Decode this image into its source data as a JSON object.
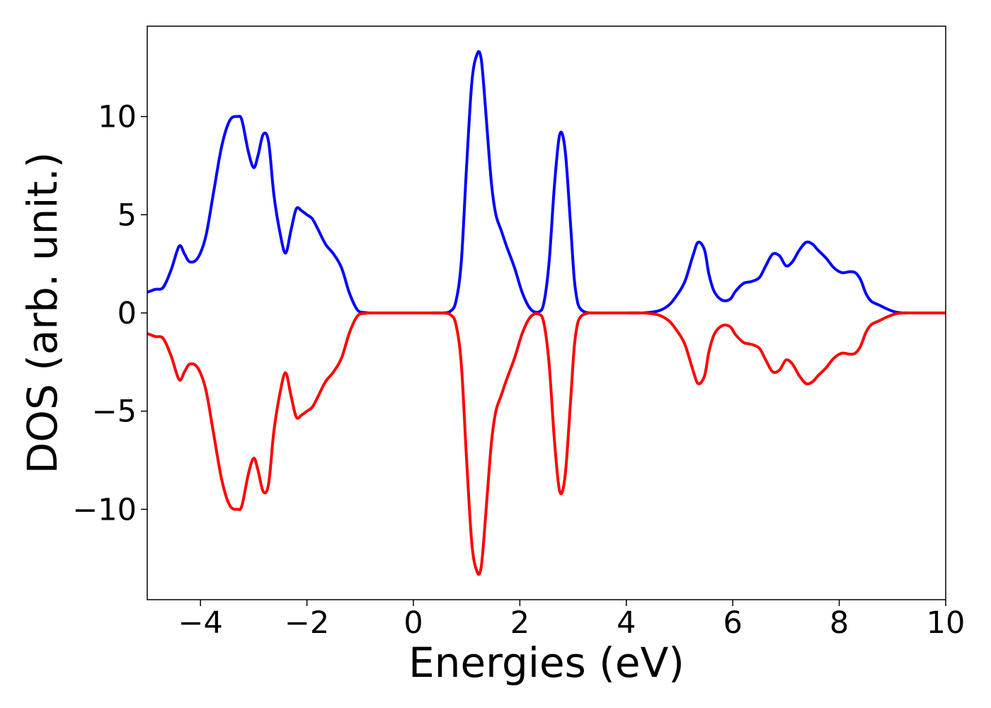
{
  "chart_data": {
    "type": "line",
    "title": "",
    "xlabel": "Energies (eV)",
    "ylabel": "DOS (arb. unit.)",
    "xlim": [
      -5,
      10
    ],
    "ylim": [
      -14.6,
      14.6
    ],
    "grid": false,
    "legend": "none",
    "xticks": [
      -4,
      -2,
      0,
      2,
      4,
      6,
      8,
      10
    ],
    "xtick_labels": [
      "−4",
      "−2",
      "0",
      "2",
      "4",
      "6",
      "8",
      "10"
    ],
    "yticks": [
      -10,
      -5,
      0,
      5,
      10
    ],
    "ytick_labels": [
      "−10",
      "−5",
      "0",
      "5",
      "10"
    ],
    "series": [
      {
        "color": "#0000ff",
        "x": [
          -5.0,
          -4.85,
          -4.7,
          -4.55,
          -4.4,
          -4.3,
          -4.2,
          -4.05,
          -3.9,
          -3.75,
          -3.6,
          -3.45,
          -3.3,
          -3.22,
          -3.1,
          -3.0,
          -2.92,
          -2.82,
          -2.72,
          -2.62,
          -2.5,
          -2.4,
          -2.3,
          -2.2,
          -2.1,
          -2.0,
          -1.9,
          -1.8,
          -1.65,
          -1.5,
          -1.35,
          -1.2,
          -1.05,
          -0.9,
          -0.75,
          -0.6,
          -0.45,
          -0.2,
          0.0,
          0.3,
          0.55,
          0.7,
          0.8,
          0.9,
          1.0,
          1.1,
          1.2,
          1.27,
          1.33,
          1.4,
          1.47,
          1.55,
          1.65,
          1.75,
          1.9,
          2.05,
          2.2,
          2.35,
          2.45,
          2.55,
          2.65,
          2.75,
          2.85,
          2.95,
          3.02,
          3.08,
          3.14,
          3.22,
          3.32,
          3.42,
          3.52,
          3.65,
          3.8,
          4.0,
          4.3,
          4.6,
          4.8,
          4.95,
          5.1,
          5.25,
          5.35,
          5.47,
          5.55,
          5.65,
          5.8,
          5.95,
          6.05,
          6.2,
          6.35,
          6.5,
          6.62,
          6.75,
          6.88,
          7.0,
          7.12,
          7.25,
          7.38,
          7.5,
          7.6,
          7.75,
          7.9,
          8.05,
          8.2,
          8.3,
          8.4,
          8.5,
          8.6,
          8.75,
          8.9,
          9.05,
          9.2,
          9.4,
          9.7,
          10.0
        ],
        "y": [
          1.05,
          1.2,
          1.3,
          2.2,
          3.4,
          3.0,
          2.6,
          2.8,
          3.9,
          6.2,
          8.5,
          9.8,
          10.0,
          9.8,
          8.2,
          7.4,
          8.0,
          9.1,
          8.7,
          6.0,
          4.0,
          3.05,
          4.2,
          5.3,
          5.2,
          5.0,
          4.8,
          4.3,
          3.5,
          3.0,
          2.3,
          1.0,
          0.15,
          0.02,
          0.0,
          0.0,
          0.0,
          0.0,
          0.0,
          0.0,
          0.0,
          0.1,
          0.6,
          2.6,
          7.5,
          11.8,
          13.2,
          13.0,
          11.3,
          8.8,
          6.5,
          5.0,
          4.2,
          3.4,
          2.3,
          1.0,
          0.2,
          0.05,
          0.5,
          2.6,
          6.5,
          9.1,
          8.3,
          4.6,
          1.8,
          0.6,
          0.2,
          0.05,
          0.0,
          0.0,
          0.0,
          0.0,
          0.0,
          0.0,
          0.0,
          0.1,
          0.4,
          0.9,
          1.6,
          2.9,
          3.6,
          3.2,
          2.0,
          1.1,
          0.65,
          0.7,
          1.1,
          1.5,
          1.6,
          1.8,
          2.4,
          3.0,
          2.9,
          2.4,
          2.6,
          3.2,
          3.6,
          3.5,
          3.2,
          2.8,
          2.3,
          2.05,
          2.1,
          2.05,
          1.7,
          1.0,
          0.6,
          0.4,
          0.2,
          0.05,
          0.0,
          0.0,
          0.0,
          0.0
        ]
      },
      {
        "color": "#ff0000",
        "x": [
          -5.0,
          -4.85,
          -4.7,
          -4.55,
          -4.4,
          -4.3,
          -4.2,
          -4.05,
          -3.9,
          -3.75,
          -3.6,
          -3.45,
          -3.3,
          -3.22,
          -3.1,
          -3.0,
          -2.92,
          -2.82,
          -2.72,
          -2.62,
          -2.5,
          -2.4,
          -2.3,
          -2.2,
          -2.1,
          -2.0,
          -1.9,
          -1.8,
          -1.65,
          -1.5,
          -1.35,
          -1.2,
          -1.05,
          -0.9,
          -0.75,
          -0.6,
          -0.45,
          -0.2,
          0.0,
          0.3,
          0.55,
          0.7,
          0.8,
          0.9,
          1.0,
          1.1,
          1.2,
          1.27,
          1.33,
          1.4,
          1.47,
          1.55,
          1.65,
          1.75,
          1.9,
          2.05,
          2.2,
          2.35,
          2.45,
          2.55,
          2.65,
          2.75,
          2.85,
          2.95,
          3.02,
          3.08,
          3.14,
          3.22,
          3.32,
          3.42,
          3.52,
          3.65,
          3.8,
          4.0,
          4.3,
          4.6,
          4.8,
          4.95,
          5.1,
          5.25,
          5.35,
          5.47,
          5.55,
          5.65,
          5.8,
          5.95,
          6.05,
          6.2,
          6.35,
          6.5,
          6.62,
          6.75,
          6.88,
          7.0,
          7.12,
          7.25,
          7.38,
          7.5,
          7.6,
          7.75,
          7.9,
          8.05,
          8.2,
          8.3,
          8.4,
          8.5,
          8.6,
          8.75,
          8.9,
          9.05,
          9.2,
          9.4,
          9.7,
          10.0
        ],
        "y": [
          -1.05,
          -1.2,
          -1.3,
          -2.2,
          -3.4,
          -3.0,
          -2.6,
          -2.8,
          -3.9,
          -6.2,
          -8.5,
          -9.8,
          -10.0,
          -9.8,
          -8.2,
          -7.4,
          -8.0,
          -9.1,
          -8.7,
          -6.0,
          -4.0,
          -3.05,
          -4.2,
          -5.3,
          -5.2,
          -5.0,
          -4.8,
          -4.3,
          -3.5,
          -3.0,
          -2.3,
          -1.0,
          -0.15,
          -0.02,
          0.0,
          0.0,
          0.0,
          0.0,
          0.0,
          0.0,
          0.0,
          -0.1,
          -0.6,
          -2.6,
          -7.5,
          -11.8,
          -13.2,
          -13.0,
          -11.3,
          -8.8,
          -6.5,
          -5.0,
          -4.2,
          -3.4,
          -2.3,
          -1.0,
          -0.2,
          -0.05,
          -0.5,
          -2.6,
          -6.5,
          -9.1,
          -8.3,
          -4.6,
          -1.8,
          -0.6,
          -0.2,
          -0.05,
          0.0,
          0.0,
          0.0,
          0.0,
          0.0,
          0.0,
          0.0,
          -0.1,
          -0.4,
          -0.9,
          -1.6,
          -2.9,
          -3.6,
          -3.2,
          -2.0,
          -1.1,
          -0.65,
          -0.7,
          -1.1,
          -1.5,
          -1.6,
          -1.8,
          -2.4,
          -3.0,
          -2.9,
          -2.4,
          -2.6,
          -3.2,
          -3.6,
          -3.5,
          -3.2,
          -2.8,
          -2.3,
          -2.05,
          -2.1,
          -2.05,
          -1.7,
          -1.0,
          -0.6,
          -0.4,
          -0.2,
          -0.05,
          0.0,
          0.0,
          0.0,
          0.0
        ]
      }
    ]
  }
}
